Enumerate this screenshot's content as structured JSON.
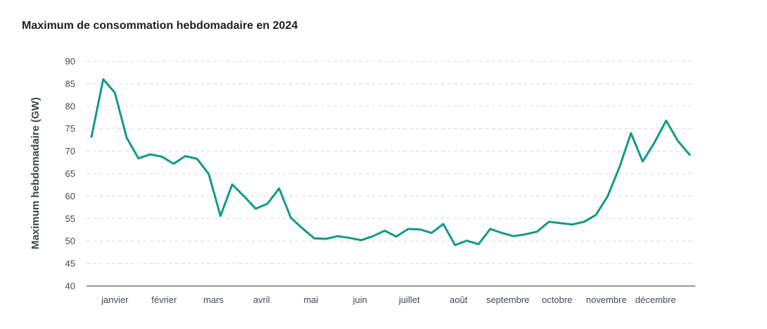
{
  "chart_data": {
    "type": "line",
    "title": "Maximum de consommation hebdomadaire en 2024",
    "xlabel": "",
    "ylabel": "Maximum hebdomadaire (GW)",
    "ylim": [
      40,
      90
    ],
    "yticks": [
      40,
      45,
      50,
      55,
      60,
      65,
      70,
      75,
      80,
      85,
      90
    ],
    "grid": true,
    "line_color": "#13998a",
    "month_labels": [
      "janvier",
      "février",
      "mars",
      "avril",
      "mai",
      "juin",
      "juillet",
      "août",
      "septembre",
      "octobre",
      "novembre",
      "décembre"
    ],
    "month_label_weeks": [
      3.0,
      7.2,
      11.4,
      15.5,
      19.7,
      23.9,
      28.1,
      32.3,
      36.5,
      40.7,
      44.9,
      49.1
    ],
    "series": [
      {
        "x": [
          1,
          2,
          3,
          4,
          5,
          6,
          7,
          8,
          9,
          10,
          11,
          12,
          13,
          14,
          15,
          16,
          17,
          18,
          19,
          20,
          21,
          22,
          23,
          24,
          25,
          26,
          27,
          28,
          29,
          30,
          31,
          32,
          33,
          34,
          35,
          36,
          37,
          38,
          39,
          40,
          41,
          42,
          43,
          44,
          45,
          46,
          47,
          48,
          49,
          50,
          51,
          52
        ],
        "values": [
          73.2,
          86.0,
          83.0,
          73.0,
          68.4,
          69.3,
          68.8,
          67.2,
          68.9,
          68.3,
          64.9,
          55.6,
          62.6,
          60.0,
          57.2,
          58.3,
          61.7,
          55.2,
          52.8,
          50.6,
          50.5,
          51.1,
          50.7,
          50.2,
          51.1,
          52.3,
          51.0,
          52.7,
          52.6,
          51.8,
          53.8,
          49.1,
          50.1,
          49.3,
          52.7,
          51.8,
          51.1,
          51.5,
          52.1,
          54.3,
          54.0,
          53.7,
          54.3,
          55.8,
          59.9,
          66.3,
          74.0,
          67.7,
          71.9,
          76.8,
          72.3,
          69.2
        ]
      }
    ]
  }
}
